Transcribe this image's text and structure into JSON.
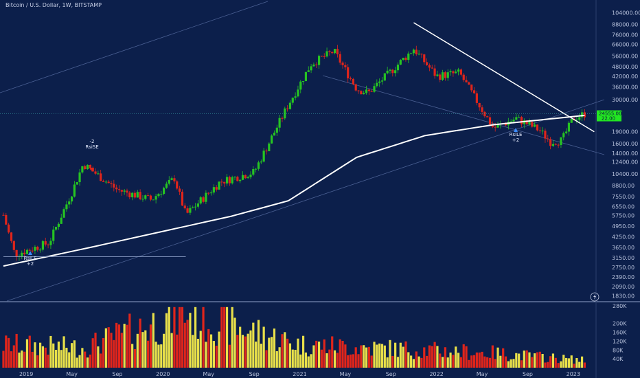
{
  "header": {
    "title": "Bitcoin / U.S. Dollar, 1W, BITSTAMP"
  },
  "price_axis_labels": [
    "104000.00",
    "88000.00",
    "76000.00",
    "66000.00",
    "56000.00",
    "48000.00",
    "42000.00",
    "36000.00",
    "30000.00",
    "24555.00",
    "22.00",
    "19000.00",
    "16000.00",
    "14000.00",
    "12400.00",
    "10400.00",
    "8800.00",
    "7550.00",
    "6550.00",
    "5750.00",
    "4950.00",
    "4250.00",
    "3650.00",
    "3150.00",
    "2750.00",
    "2390.00",
    "2090.00",
    "1830.00"
  ],
  "volume_axis_labels": [
    "280K",
    "200K",
    "160K",
    "120K",
    "80K",
    "40K"
  ],
  "time_labels": [
    "2019",
    "May",
    "Sep",
    "2020",
    "May",
    "Sep",
    "2021",
    "May",
    "Sep",
    "2022",
    "May",
    "Sep",
    "2023"
  ],
  "annotations": [
    {
      "lines": [
        "-2",
        "RsiSE"
      ]
    },
    {
      "lines": [
        "RsiLE",
        "+2"
      ]
    },
    {
      "lines": [
        "RsiLE",
        "+2"
      ]
    }
  ],
  "colors": {
    "background": "#0c1f4b",
    "up": "#26c422",
    "down": "#e0251b",
    "vol_up": "#e8e04a",
    "vol_down": "#e0251b",
    "ma": "#ffffff",
    "price_tag": "#22e622"
  },
  "icons": [
    "lightning-icon"
  ],
  "chart_data": {
    "type": "candlestick",
    "title": "Bitcoin / U.S. Dollar, 1W, BITSTAMP",
    "scale": "log",
    "current_price": 24555,
    "price_tag_values": [
      "24555.00",
      "22.00"
    ],
    "ylim": [
      1700,
      115000
    ],
    "volume_ylim": [
      0,
      280000
    ],
    "time_range": [
      "2018-11",
      "2023-02"
    ],
    "anchors": [
      {
        "date": "2018-11",
        "price": 5800
      },
      {
        "date": "2018-12",
        "price": 3300
      },
      {
        "date": "2019-03",
        "price": 3900
      },
      {
        "date": "2019-05",
        "price": 8000
      },
      {
        "date": "2019-06",
        "price": 12000
      },
      {
        "date": "2019-09",
        "price": 8300
      },
      {
        "date": "2019-12",
        "price": 7200
      },
      {
        "date": "2020-02",
        "price": 9800
      },
      {
        "date": "2020-03",
        "price": 5800
      },
      {
        "date": "2020-06",
        "price": 9300
      },
      {
        "date": "2020-09",
        "price": 10700
      },
      {
        "date": "2020-12",
        "price": 28000
      },
      {
        "date": "2021-02",
        "price": 50000
      },
      {
        "date": "2021-04",
        "price": 60000
      },
      {
        "date": "2021-06",
        "price": 35000
      },
      {
        "date": "2021-07",
        "price": 33000
      },
      {
        "date": "2021-09",
        "price": 45000
      },
      {
        "date": "2021-11",
        "price": 62000
      },
      {
        "date": "2022-01",
        "price": 42000
      },
      {
        "date": "2022-03",
        "price": 44000
      },
      {
        "date": "2022-06",
        "price": 20000
      },
      {
        "date": "2022-08",
        "price": 23000
      },
      {
        "date": "2022-10",
        "price": 19500
      },
      {
        "date": "2022-11",
        "price": 16500
      },
      {
        "date": "2022-12",
        "price": 16800
      },
      {
        "date": "2023-01",
        "price": 23000
      },
      {
        "date": "2023-02",
        "price": 24555
      }
    ],
    "volume_series": [
      {
        "date": "2018-11",
        "volume": 110000
      },
      {
        "date": "2019-06",
        "volume": 95000
      },
      {
        "date": "2020-03",
        "volume": 260000
      },
      {
        "date": "2021-01",
        "volume": 110000
      },
      {
        "date": "2022-06",
        "volume": 70000
      },
      {
        "date": "2023-02",
        "volume": 35000
      }
    ],
    "moving_average": [
      {
        "date": "2018-11",
        "price": 2800
      },
      {
        "date": "2019-07",
        "price": 3700
      },
      {
        "date": "2020-07",
        "price": 5700
      },
      {
        "date": "2020-12",
        "price": 7100
      },
      {
        "date": "2021-06",
        "price": 13200
      },
      {
        "date": "2021-12",
        "price": 18000
      },
      {
        "date": "2022-06",
        "price": 21000
      },
      {
        "date": "2023-02",
        "price": 24000
      }
    ],
    "trendline": [
      {
        "date": "2021-11",
        "price": 90000
      },
      {
        "date": "2023-02",
        "price": 19000
      }
    ],
    "horizontal_line": {
      "price": 3200,
      "from": "2018-11",
      "to": "2020-03"
    }
  }
}
